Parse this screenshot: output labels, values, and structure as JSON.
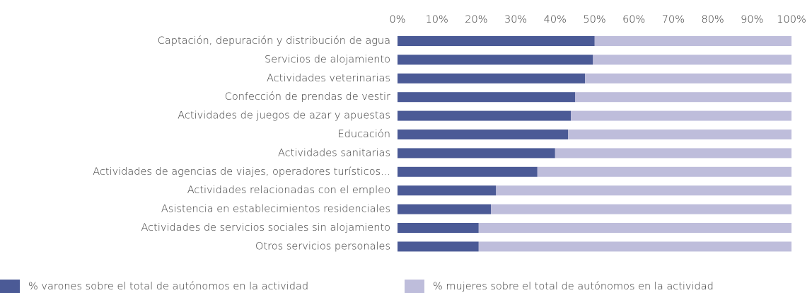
{
  "chart_data": {
    "type": "stacked-bar-horizontal",
    "categories": [
      "Captación, depuración y distribución de agua",
      "Servicios de alojamiento",
      "Actividades veterinarias",
      "Confección de prendas de vestir",
      "Actividades de juegos de azar y apuestas",
      "Educación",
      "Actividades sanitarias",
      "Actividades de agencias de viajes, operadores turísticos...",
      "Actividades relacionadas con el empleo",
      "Asistencia en establecimientos residenciales",
      "Actividades de servicios sociales sin alojamiento",
      "Otros servicios personales"
    ],
    "series": [
      {
        "name": "% varones sobre el total de autónomos en la actividad",
        "color": "#4b5a96",
        "values": [
          50,
          49.6,
          47.6,
          45.1,
          44,
          43.3,
          40,
          35.5,
          25,
          23.7,
          20.6,
          20.6
        ]
      },
      {
        "name": "% mujeres sobre el total de autónomos en la actividad",
        "color": "#bebddb",
        "values": [
          50,
          50.4,
          52.4,
          54.9,
          56,
          56.7,
          60,
          64.5,
          75,
          76.3,
          79.4,
          79.4
        ]
      }
    ],
    "xlim": [
      0,
      100
    ],
    "xticks": [
      {
        "value": 0,
        "label": "0%"
      },
      {
        "value": 10,
        "label": "10%"
      },
      {
        "value": 20,
        "label": "20%"
      },
      {
        "value": 30,
        "label": "30%"
      },
      {
        "value": 40,
        "label": "40%"
      },
      {
        "value": 50,
        "label": "50%"
      },
      {
        "value": 60,
        "label": "60%"
      },
      {
        "value": 70,
        "label": "70%"
      },
      {
        "value": 80,
        "label": "80%"
      },
      {
        "value": 90,
        "label": "90%"
      },
      {
        "value": 100,
        "label": "100%"
      }
    ],
    "legend": "bottom"
  }
}
